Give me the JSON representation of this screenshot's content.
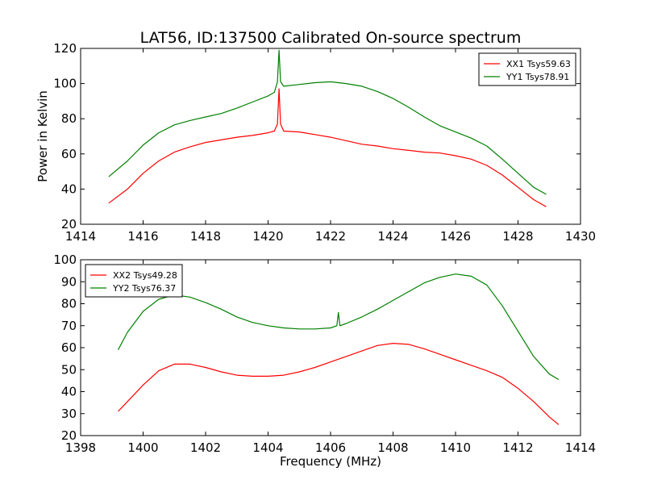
{
  "figure": {
    "title": "LAT56, ID:137500 Calibrated On-source spectrum",
    "ylabel": "Power in Kelvin",
    "xlabel": "Frequency (MHz)"
  },
  "colors": {
    "red": "#ff0000",
    "green": "#008000",
    "axes": "#000000",
    "background": "#ffffff"
  },
  "chart_data": [
    {
      "type": "line",
      "title": "LAT56, ID:137500 Calibrated On-source spectrum",
      "xlabel": "",
      "ylabel": "Power in Kelvin",
      "xlim": [
        1414,
        1430
      ],
      "ylim": [
        20,
        120
      ],
      "xticks": [
        "1414",
        "1416",
        "1418",
        "1420",
        "1422",
        "1424",
        "1426",
        "1428",
        "1430"
      ],
      "yticks": [
        "20",
        "40",
        "60",
        "80",
        "100",
        "120"
      ],
      "grid": false,
      "legend_position": "top-right",
      "series": [
        {
          "name": "XX1 Tsys59.63",
          "color": "#ff0000",
          "x": [
            1414.9,
            1415.5,
            1416.0,
            1416.5,
            1417.0,
            1417.5,
            1418.0,
            1418.5,
            1419.0,
            1419.5,
            1420.0,
            1420.2,
            1420.3,
            1420.35,
            1420.4,
            1420.5,
            1421.0,
            1421.5,
            1422.0,
            1422.5,
            1423.0,
            1423.5,
            1424.0,
            1424.5,
            1425.0,
            1425.5,
            1426.0,
            1426.5,
            1427.0,
            1427.5,
            1428.0,
            1428.5,
            1428.9
          ],
          "y": [
            32,
            40,
            49,
            56,
            61,
            64,
            66.5,
            68,
            69.5,
            70.5,
            72,
            73,
            77,
            97,
            77,
            73,
            72.5,
            71,
            69.5,
            67.5,
            65.5,
            64.5,
            63,
            62,
            61,
            60.5,
            59,
            57,
            53.5,
            48,
            41,
            34,
            30
          ]
        },
        {
          "name": "YY1 Tsys78.91",
          "color": "#008000",
          "x": [
            1414.9,
            1415.5,
            1416.0,
            1416.5,
            1417.0,
            1417.5,
            1418.0,
            1418.5,
            1419.0,
            1419.5,
            1420.0,
            1420.2,
            1420.3,
            1420.35,
            1420.4,
            1420.5,
            1421.0,
            1421.5,
            1422.0,
            1422.5,
            1423.0,
            1423.5,
            1424.0,
            1424.5,
            1425.0,
            1425.5,
            1426.0,
            1426.5,
            1427.0,
            1427.5,
            1428.0,
            1428.5,
            1428.9
          ],
          "y": [
            47,
            56,
            65,
            72,
            76.5,
            79,
            81,
            83,
            86,
            89.5,
            93,
            95,
            101,
            119,
            101,
            98.5,
            99.5,
            100.5,
            101,
            100,
            98.5,
            95.5,
            91.5,
            86.5,
            81,
            76,
            72.5,
            69,
            64.5,
            57,
            49,
            41,
            37
          ]
        }
      ]
    },
    {
      "type": "line",
      "title": "",
      "xlabel": "Frequency (MHz)",
      "ylabel": "",
      "xlim": [
        1398,
        1414
      ],
      "ylim": [
        20,
        100
      ],
      "xticks": [
        "1398",
        "1400",
        "1402",
        "1404",
        "1406",
        "1408",
        "1410",
        "1412",
        "1414"
      ],
      "yticks": [
        "20",
        "30",
        "40",
        "50",
        "60",
        "70",
        "80",
        "90",
        "100"
      ],
      "grid": false,
      "legend_position": "top-left",
      "series": [
        {
          "name": "XX2 Tsys49.28",
          "color": "#ff0000",
          "x": [
            1399.2,
            1399.5,
            1400.0,
            1400.5,
            1401.0,
            1401.5,
            1402.0,
            1402.5,
            1403.0,
            1403.5,
            1404.0,
            1404.5,
            1405.0,
            1405.5,
            1406.0,
            1406.5,
            1407.0,
            1407.5,
            1408.0,
            1408.5,
            1409.0,
            1409.5,
            1410.0,
            1410.5,
            1411.0,
            1411.5,
            1412.0,
            1412.5,
            1413.0,
            1413.3
          ],
          "y": [
            31,
            35.5,
            43,
            49.5,
            52.5,
            52.5,
            51,
            49,
            47.5,
            47,
            47,
            47.5,
            49,
            51,
            53.5,
            56,
            58.5,
            61,
            62,
            61.5,
            59.5,
            57,
            54.5,
            52,
            49.5,
            46.5,
            41.5,
            35.5,
            28.5,
            25
          ]
        },
        {
          "name": "YY2 Tsys76.37",
          "color": "#008000",
          "x": [
            1399.2,
            1399.5,
            1400.0,
            1400.5,
            1401.0,
            1401.5,
            1402.0,
            1402.5,
            1403.0,
            1403.5,
            1404.0,
            1404.5,
            1405.0,
            1405.5,
            1406.0,
            1406.2,
            1406.25,
            1406.3,
            1406.5,
            1407.0,
            1407.5,
            1408.0,
            1408.5,
            1409.0,
            1409.5,
            1410.0,
            1410.5,
            1411.0,
            1411.5,
            1412.0,
            1412.5,
            1413.0,
            1413.3
          ],
          "y": [
            59,
            67,
            76.5,
            82,
            84,
            83,
            80.5,
            77.5,
            74,
            71.5,
            70,
            69,
            68.5,
            68.5,
            69,
            70,
            76,
            70,
            71,
            74,
            77.5,
            81.5,
            85.5,
            89.5,
            92,
            93.5,
            92.5,
            88.5,
            79,
            67.5,
            56,
            48,
            45.5
          ]
        }
      ]
    }
  ]
}
